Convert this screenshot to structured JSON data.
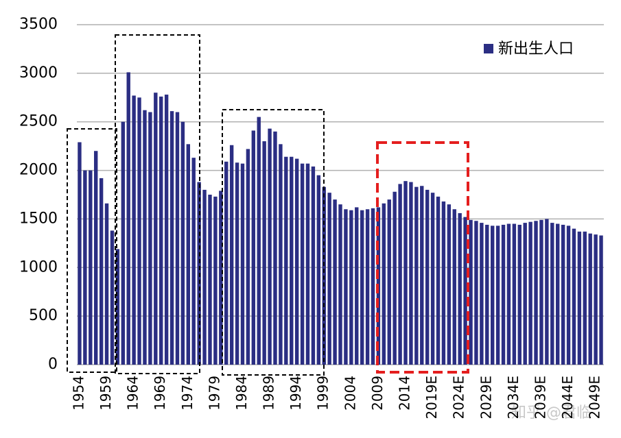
{
  "chart_data": {
    "type": "bar",
    "categories": [
      "1954",
      null,
      null,
      null,
      null,
      "1959",
      null,
      null,
      null,
      null,
      "1964",
      null,
      null,
      null,
      null,
      "1969",
      null,
      null,
      null,
      null,
      "1974",
      null,
      null,
      null,
      null,
      "1979",
      null,
      null,
      null,
      null,
      "1984",
      null,
      null,
      null,
      null,
      "1989",
      null,
      null,
      null,
      null,
      "1994",
      null,
      null,
      null,
      null,
      "1999",
      null,
      null,
      null,
      null,
      "2004",
      null,
      null,
      null,
      null,
      "2009",
      null,
      null,
      null,
      null,
      "2014",
      null,
      null,
      null,
      null,
      "2019E",
      null,
      null,
      null,
      null,
      "2024E",
      null,
      null,
      null,
      null,
      "2029E",
      null,
      null,
      null,
      null,
      "2034E",
      null,
      null,
      null,
      null,
      "2039E",
      null,
      null,
      null,
      null,
      "2044E",
      null,
      null,
      null,
      null,
      "2049E",
      null
    ],
    "series": [
      {
        "name": "新出生人口",
        "color": "#2b2e83",
        "values": [
          2290,
          2000,
          2000,
          2200,
          1920,
          1660,
          1380,
          1190,
          2500,
          3010,
          2770,
          2750,
          2620,
          2600,
          2800,
          2760,
          2780,
          2610,
          2600,
          2500,
          2270,
          2130,
          1880,
          1800,
          1750,
          1730,
          1790,
          2090,
          2260,
          2080,
          2070,
          2220,
          2410,
          2550,
          2300,
          2430,
          2400,
          2270,
          2140,
          2140,
          2120,
          2070,
          2070,
          2040,
          1950,
          1830,
          1770,
          1700,
          1650,
          1600,
          1590,
          1620,
          1590,
          1600,
          1610,
          1620,
          1660,
          1700,
          1780,
          1860,
          1890,
          1880,
          1830,
          1840,
          1800,
          1770,
          1730,
          1680,
          1650,
          1600,
          1560,
          1520,
          1490,
          1480,
          1460,
          1440,
          1430,
          1430,
          1440,
          1450,
          1450,
          1440,
          1460,
          1470,
          1480,
          1490,
          1500,
          1460,
          1450,
          1440,
          1430,
          1400,
          1370,
          1370,
          1350,
          1340,
          1330
        ]
      }
    ],
    "ylim": [
      0,
      3500
    ],
    "yticks": [
      0,
      500,
      1000,
      1500,
      2000,
      2500,
      3000,
      3500
    ],
    "grid": true,
    "legend": "top-right"
  },
  "watermark": "知乎 @君临"
}
